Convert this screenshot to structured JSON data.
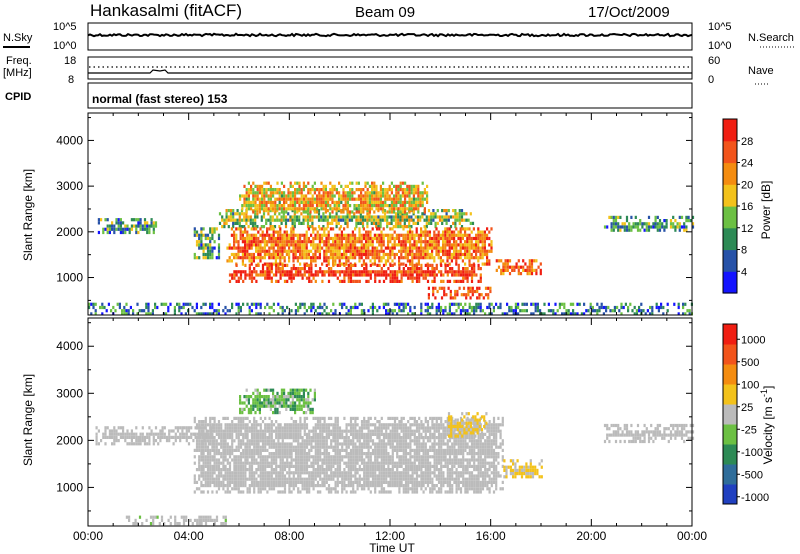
{
  "header": {
    "station": "Hankasalmi (fitACF)",
    "beam": "Beam 09",
    "date": "17/Oct/2009"
  },
  "strips": {
    "nsky_label": "N.Sky",
    "nsky_ticks": [
      "10^5",
      "10^0"
    ],
    "nsearch_label": "N.Search",
    "nsearch_ticks": [
      "10^5",
      "10^0"
    ],
    "freq_label": [
      "Freq.",
      "[MHz]"
    ],
    "freq_ticks": [
      "18",
      "8"
    ],
    "nave_label": "Nave",
    "nave_ticks": [
      "60",
      "0"
    ],
    "cpid_label": "CPID",
    "cpid_text": "normal (fast stereo) 153"
  },
  "chart_data": [
    {
      "type": "heatmap",
      "title": "",
      "xlabel": "",
      "ylabel": "Slant Range [km]",
      "x_ticks": [
        "00:00",
        "04:00",
        "08:00",
        "12:00",
        "16:00",
        "20:00",
        "00:00"
      ],
      "xlim_hours": [
        0,
        24
      ],
      "y_ticks": [
        1000,
        2000,
        3000,
        4000
      ],
      "ylim_km": [
        180,
        4600
      ],
      "colorbar": {
        "label": "Power [dB]",
        "ticks": [
          "4",
          "8",
          "12",
          "16",
          "20",
          "24",
          "28"
        ],
        "range": [
          0,
          30
        ],
        "colors": [
          "#1414ff",
          "#2752a8",
          "#2d8a55",
          "#6cc043",
          "#f3c21b",
          "#f48c10",
          "#f2541b",
          "#f01e12"
        ]
      },
      "regions": [
        {
          "t": [
            0.3,
            2.7
          ],
          "r": [
            1950,
            2300
          ],
          "value": 10
        },
        {
          "t": [
            4.2,
            5.2
          ],
          "r": [
            1400,
            2100
          ],
          "value": 10
        },
        {
          "t": [
            5.2,
            15.3
          ],
          "r": [
            2100,
            2500
          ],
          "value": 14
        },
        {
          "t": [
            6.0,
            13.5
          ],
          "r": [
            2400,
            3100
          ],
          "value": 18
        },
        {
          "t": [
            5.5,
            16.0
          ],
          "r": [
            1300,
            2100
          ],
          "value": 22
        },
        {
          "t": [
            5.6,
            15.6
          ],
          "r": [
            900,
            1300
          ],
          "value": 27
        },
        {
          "t": [
            16.2,
            18.0
          ],
          "r": [
            1050,
            1400
          ],
          "value": 24
        },
        {
          "t": [
            13.5,
            16.0
          ],
          "r": [
            550,
            800
          ],
          "value": 26
        },
        {
          "t": [
            20.5,
            24.0
          ],
          "r": [
            2000,
            2350
          ],
          "value": 10
        },
        {
          "t": [
            0.0,
            24.0
          ],
          "r": [
            200,
            450
          ],
          "value": 8
        }
      ]
    },
    {
      "type": "heatmap",
      "title": "",
      "xlabel": "Time UT",
      "ylabel": "Slant Range [km]",
      "x_ticks": [
        "00:00",
        "04:00",
        "08:00",
        "12:00",
        "16:00",
        "20:00",
        "00:00"
      ],
      "xlim_hours": [
        0,
        24
      ],
      "y_ticks": [
        1000,
        2000,
        3000,
        4000
      ],
      "ylim_km": [
        180,
        4600
      ],
      "colorbar": {
        "label": "Velocity [m s^-1]",
        "ticks": [
          "1000",
          "500",
          "100",
          "25",
          "-25",
          "-100",
          "-500",
          "-1000"
        ],
        "range": [
          -1200,
          1200
        ],
        "colors": [
          "#2040c0",
          "#2f6d9a",
          "#2d8a55",
          "#6cc043",
          "#bbbbbb",
          "#f3c21b",
          "#f48c10",
          "#f2541b",
          "#f01e12"
        ]
      },
      "regions": [
        {
          "t": [
            0.3,
            5.0
          ],
          "r": [
            1950,
            2300
          ],
          "value": 0
        },
        {
          "t": [
            4.2,
            16.5
          ],
          "r": [
            900,
            2500
          ],
          "value": 0
        },
        {
          "t": [
            6.0,
            9.0
          ],
          "r": [
            2600,
            3100
          ],
          "value": -300
        },
        {
          "t": [
            14.3,
            15.8
          ],
          "r": [
            2100,
            2600
          ],
          "value": 150
        },
        {
          "t": [
            16.5,
            18.0
          ],
          "r": [
            1200,
            1600
          ],
          "value": 150
        },
        {
          "t": [
            20.5,
            24.0
          ],
          "r": [
            2000,
            2350
          ],
          "value": 0
        },
        {
          "t": [
            1.5,
            5.5
          ],
          "r": [
            200,
            400
          ],
          "value": -80
        }
      ]
    }
  ]
}
